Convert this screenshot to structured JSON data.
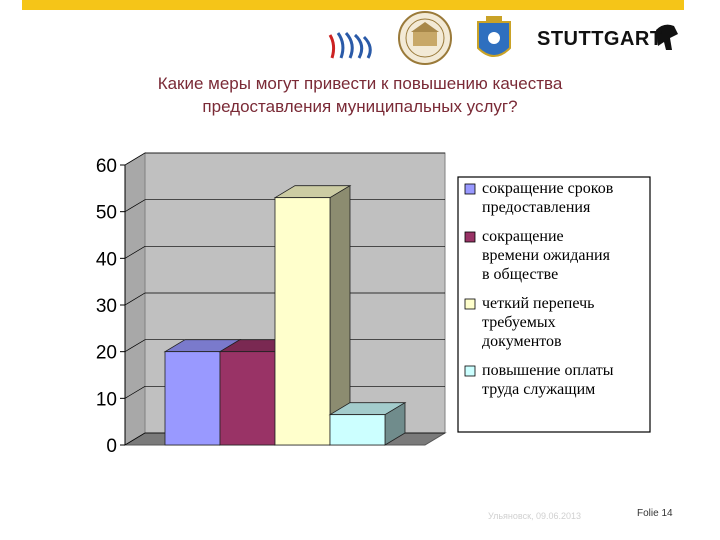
{
  "header": {
    "stuttgart_logo_text": "STUTTGART",
    "accent_color": "#f5c518"
  },
  "title_lines": [
    "Какие меры могут привести к повышению качества",
    "предоставления муниципальных услуг?"
  ],
  "chart_data": {
    "type": "bar",
    "style": "3d-column",
    "ylim": [
      0,
      60
    ],
    "yticks": [
      0,
      10,
      20,
      30,
      40,
      50,
      60
    ],
    "grid": true,
    "legend_position": "right",
    "series": [
      {
        "name": "сокращение сроков предоставления",
        "legend_lines": [
          "сокращение сроков",
          "предоставления"
        ],
        "value": 20,
        "color": "#9999ff"
      },
      {
        "name": "сокращение времени ожидания в обществе",
        "legend_lines": [
          "сокращение",
          "времени ожидания",
          "в обществе"
        ],
        "value": 20,
        "color": "#993366"
      },
      {
        "name": "четкий перепечь требуемых документов",
        "legend_lines": [
          "четкий перепечь",
          "требуемых",
          "документов"
        ],
        "value": 53,
        "color": "#ffffcc"
      },
      {
        "name": "повышение оплаты труда служащим",
        "legend_lines": [
          "повышение оплаты",
          "труда служащим"
        ],
        "value": 6.5,
        "color": "#ccffff"
      }
    ]
  },
  "footer": {
    "date_text": "Ульяновск, 09.06.2013",
    "page_label": "Folie 14"
  }
}
